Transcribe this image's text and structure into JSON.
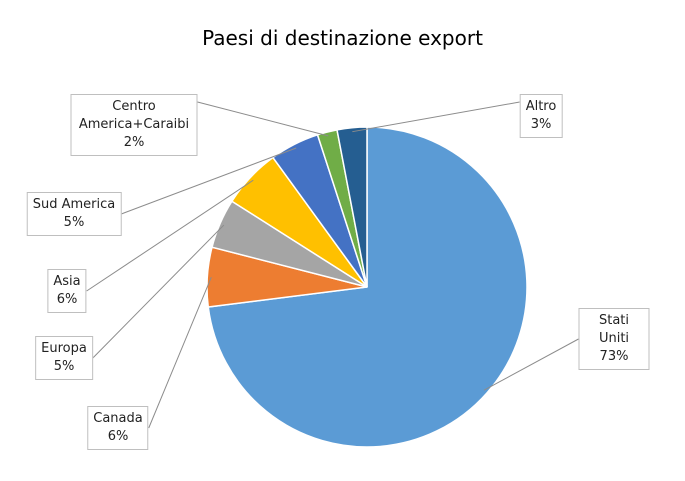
{
  "chart_data": {
    "type": "pie",
    "title": "Paesi di destinazione export",
    "categories": [
      "Stati Uniti",
      "Canada",
      "Europa",
      "Asia",
      "Sud America",
      "Centro America+Caraibi",
      "Altro"
    ],
    "values": [
      73,
      6,
      5,
      6,
      5,
      2,
      3
    ],
    "value_labels": [
      "73%",
      "6%",
      "5%",
      "6%",
      "5%",
      "2%",
      "3%"
    ],
    "colors": [
      "#5b9bd5",
      "#ed7d31",
      "#a5a5a5",
      "#ffc000",
      "#4472c4",
      "#70ad47",
      "#255e91"
    ]
  }
}
